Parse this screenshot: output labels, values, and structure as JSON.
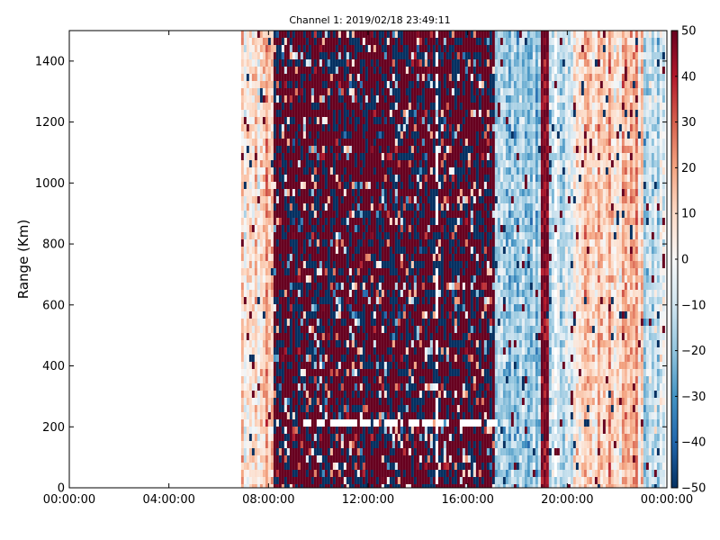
{
  "chart_data": {
    "type": "heatmap",
    "title": "Channel 1: 2019/02/18 23:49:11",
    "xlabel": "",
    "ylabel": "Range (Km)",
    "x_ticks": [
      "00:00:00",
      "04:00:00",
      "08:00:00",
      "12:00:00",
      "16:00:00",
      "20:00:00",
      "00:00:00"
    ],
    "x_range_hours": [
      0,
      24
    ],
    "y_ticks": [
      0,
      200,
      400,
      600,
      800,
      1000,
      1200,
      1400
    ],
    "ylim": [
      0,
      1500
    ],
    "colorbar": {
      "colormap": "RdBu_r",
      "range": [
        -50,
        50
      ],
      "ticks": [
        50,
        40,
        30,
        20,
        10,
        0,
        -10,
        -20,
        -30,
        -40,
        -50
      ]
    },
    "data_extent_hours": [
      6.9,
      24.0
    ],
    "regions": [
      {
        "start_hour": 6.9,
        "end_hour": 8.1,
        "level": "light warm",
        "mean": 12
      },
      {
        "start_hour": 8.1,
        "end_hour": 17.0,
        "level": "high variance, mostly +50 / -50",
        "mean": 30
      },
      {
        "start_hour": 17.0,
        "end_hour": 18.9,
        "level": "cool",
        "mean": -18
      },
      {
        "start_hour": 18.9,
        "end_hour": 19.2,
        "level": "strong warm band",
        "mean": 48
      },
      {
        "start_hour": 19.2,
        "end_hour": 20.2,
        "level": "cool",
        "mean": -12
      },
      {
        "start_hour": 20.2,
        "end_hour": 23.0,
        "level": "light warm",
        "mean": 12
      },
      {
        "start_hour": 23.0,
        "end_hour": 24.0,
        "level": "light cool",
        "mean": -8
      }
    ],
    "gap_rows_km": [
      205,
      215
    ]
  }
}
